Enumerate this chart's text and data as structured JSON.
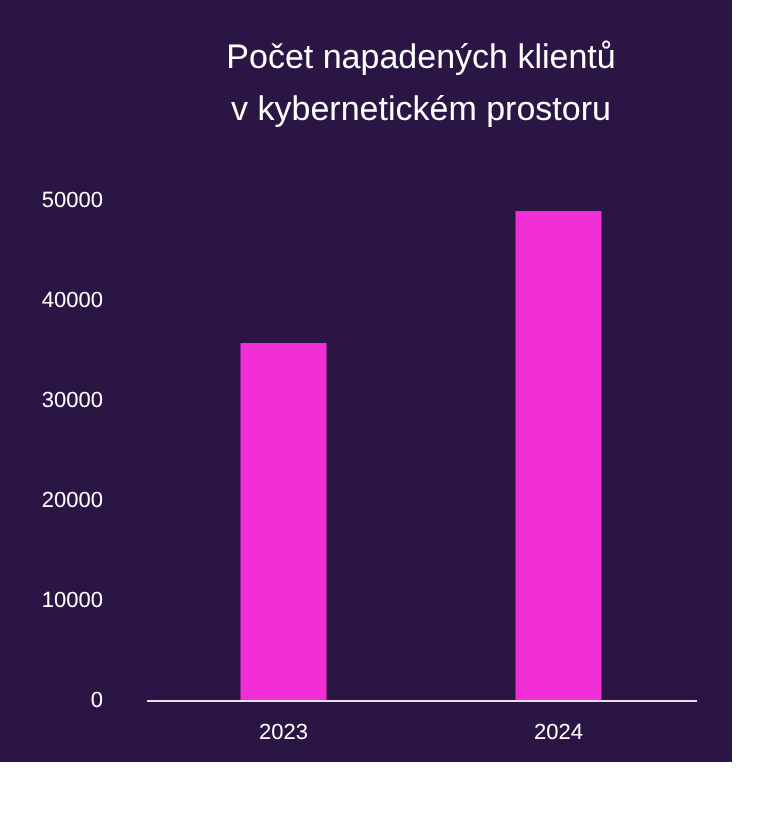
{
  "chart_data": {
    "type": "bar",
    "title": "Počet napadených klientů v kybernetickém prostoru",
    "categories": [
      "2023",
      "2024"
    ],
    "values": [
      35700,
      48900
    ],
    "color": "#f22fd7",
    "ylim": [
      0,
      50000
    ],
    "yticks": [
      0,
      10000,
      20000,
      30000,
      40000,
      50000
    ],
    "grid": false
  }
}
